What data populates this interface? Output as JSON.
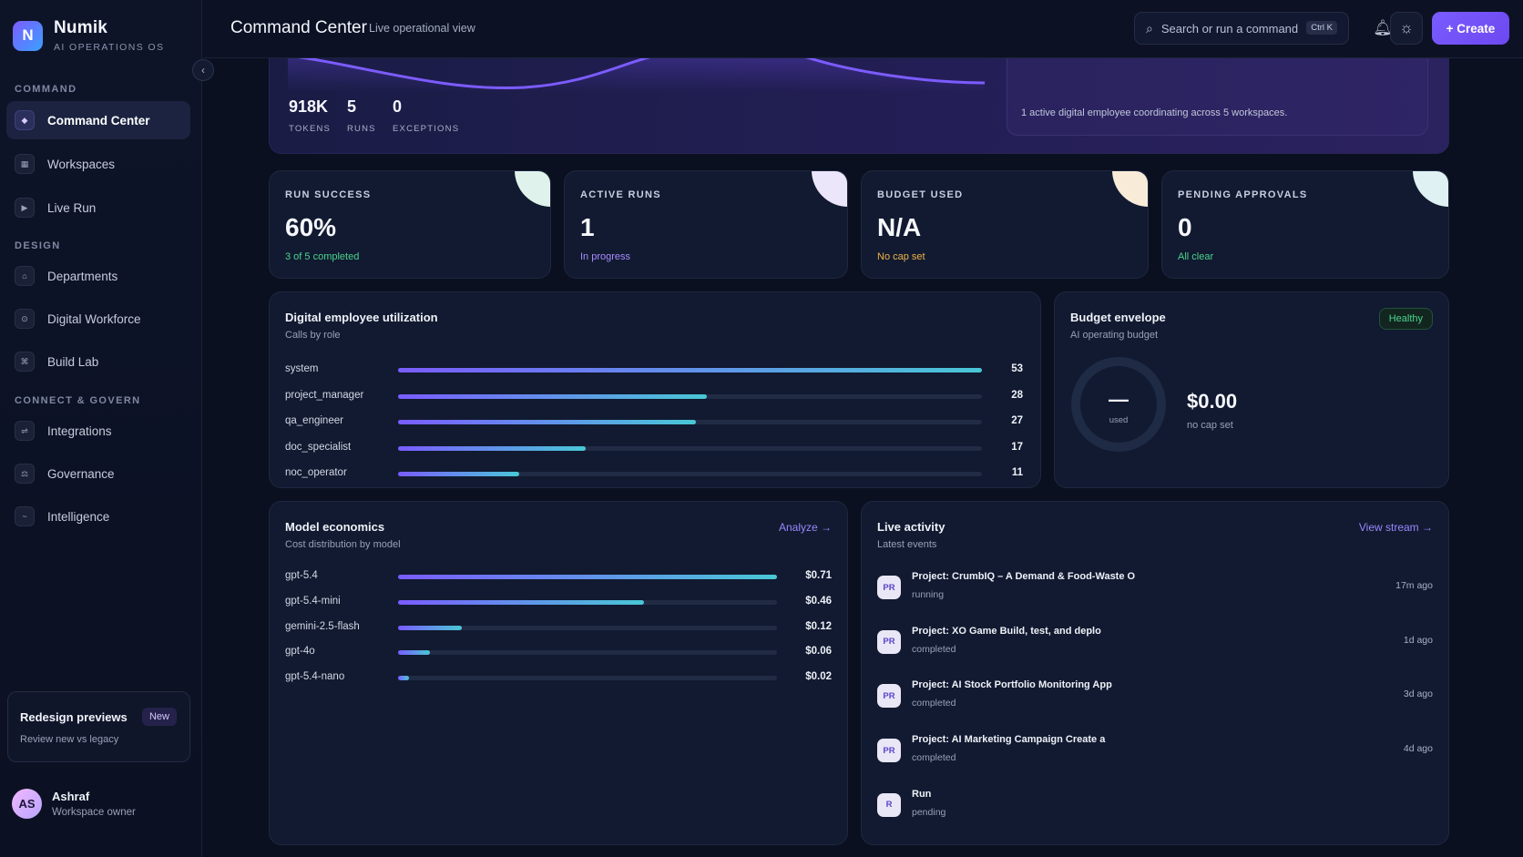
{
  "brand": {
    "logo_letter": "N",
    "name": "Numik",
    "subtitle": "AI OPERATIONS OS"
  },
  "sidebar": {
    "sections": [
      {
        "label": "COMMAND",
        "items": [
          {
            "label": "Command Center",
            "icon": "diamond-icon",
            "active": true
          },
          {
            "label": "Workspaces",
            "icon": "grid-icon"
          },
          {
            "label": "Live Run",
            "icon": "play-icon"
          }
        ]
      },
      {
        "label": "DESIGN",
        "items": [
          {
            "label": "Departments",
            "icon": "building-icon"
          },
          {
            "label": "Digital Workforce",
            "icon": "bot-icon"
          },
          {
            "label": "Build Lab",
            "icon": "command-icon"
          }
        ]
      },
      {
        "label": "CONNECT & GOVERN",
        "items": [
          {
            "label": "Integrations",
            "icon": "link-icon"
          },
          {
            "label": "Governance",
            "icon": "scale-icon"
          },
          {
            "label": "Intelligence",
            "icon": "wave-icon"
          }
        ]
      }
    ],
    "promo": {
      "title": "Redesign previews",
      "badge": "New",
      "subtitle": "Review new vs legacy"
    },
    "user": {
      "initials": "AS",
      "name": "Ashraf",
      "role": "Workspace owner"
    }
  },
  "header": {
    "title": "Command Center",
    "subtitle": "Live operational view",
    "search_placeholder": "Search or run a command",
    "search_shortcut": "Ctrl K",
    "create_label": "+ Create"
  },
  "hero": {
    "stats": [
      {
        "value": "918K",
        "label": "TOKENS"
      },
      {
        "value": "5",
        "label": "RUNS"
      },
      {
        "value": "0",
        "label": "EXCEPTIONS"
      }
    ],
    "note": "1 active digital employee coordinating across 5 workspaces."
  },
  "kpis": [
    {
      "label": "RUN SUCCESS",
      "value": "60%",
      "note": "3 of 5 completed",
      "note_color": "#4bd38c",
      "corner_color": "#dff3ec"
    },
    {
      "label": "ACTIVE RUNS",
      "value": "1",
      "note": "In progress",
      "note_color": "#a78bff",
      "corner_color": "#ece6fb"
    },
    {
      "label": "BUDGET USED",
      "value": "N/A",
      "note": "No cap set",
      "note_color": "#f0b34a",
      "corner_color": "#f8ecd9"
    },
    {
      "label": "PENDING APPROVALS",
      "value": "0",
      "note": "All clear",
      "note_color": "#4bd38c",
      "corner_color": "#dff1f3"
    }
  ],
  "utilization": {
    "title": "Digital employee utilization",
    "subtitle": "Calls by role",
    "max": 53,
    "rows": [
      {
        "label": "system",
        "value": 53
      },
      {
        "label": "project_manager",
        "value": 28
      },
      {
        "label": "qa_engineer",
        "value": 27
      },
      {
        "label": "doc_specialist",
        "value": 17
      },
      {
        "label": "noc_operator",
        "value": 11
      }
    ]
  },
  "budget": {
    "title": "Budget envelope",
    "subtitle": "AI operating budget",
    "status": "Healthy",
    "ring_value": "—",
    "ring_caption": "used",
    "amount": "$0.00",
    "cap_note": "no cap set"
  },
  "economics": {
    "title": "Model economics",
    "subtitle": "Cost distribution by model",
    "link": "Analyze →",
    "max": 0.71,
    "rows": [
      {
        "label": "gpt-5.4",
        "value": 0.71,
        "display": "$0.71"
      },
      {
        "label": "gpt-5.4-mini",
        "value": 0.46,
        "display": "$0.46"
      },
      {
        "label": "gemini-2.5-flash",
        "value": 0.12,
        "display": "$0.12"
      },
      {
        "label": "gpt-4o",
        "value": 0.06,
        "display": "$0.06"
      },
      {
        "label": "gpt-5.4-nano",
        "value": 0.02,
        "display": "$0.02"
      }
    ]
  },
  "activity": {
    "title": "Live activity",
    "subtitle": "Latest events",
    "link": "View stream →",
    "items": [
      {
        "badge": "PR",
        "title": "Project: CrumbIQ – A Demand & Food-Waste O",
        "status": "running",
        "time": "17m ago"
      },
      {
        "badge": "PR",
        "title": "Project: XO Game Build, test, and deplo",
        "status": "completed",
        "time": "1d ago"
      },
      {
        "badge": "PR",
        "title": "Project: AI Stock Portfolio Monitoring App",
        "status": "completed",
        "time": "3d ago"
      },
      {
        "badge": "PR",
        "title": "Project: AI Marketing Campaign Create a",
        "status": "completed",
        "time": "4d ago"
      },
      {
        "badge": "R",
        "title": "Run",
        "status": "pending",
        "time": ""
      }
    ]
  }
}
